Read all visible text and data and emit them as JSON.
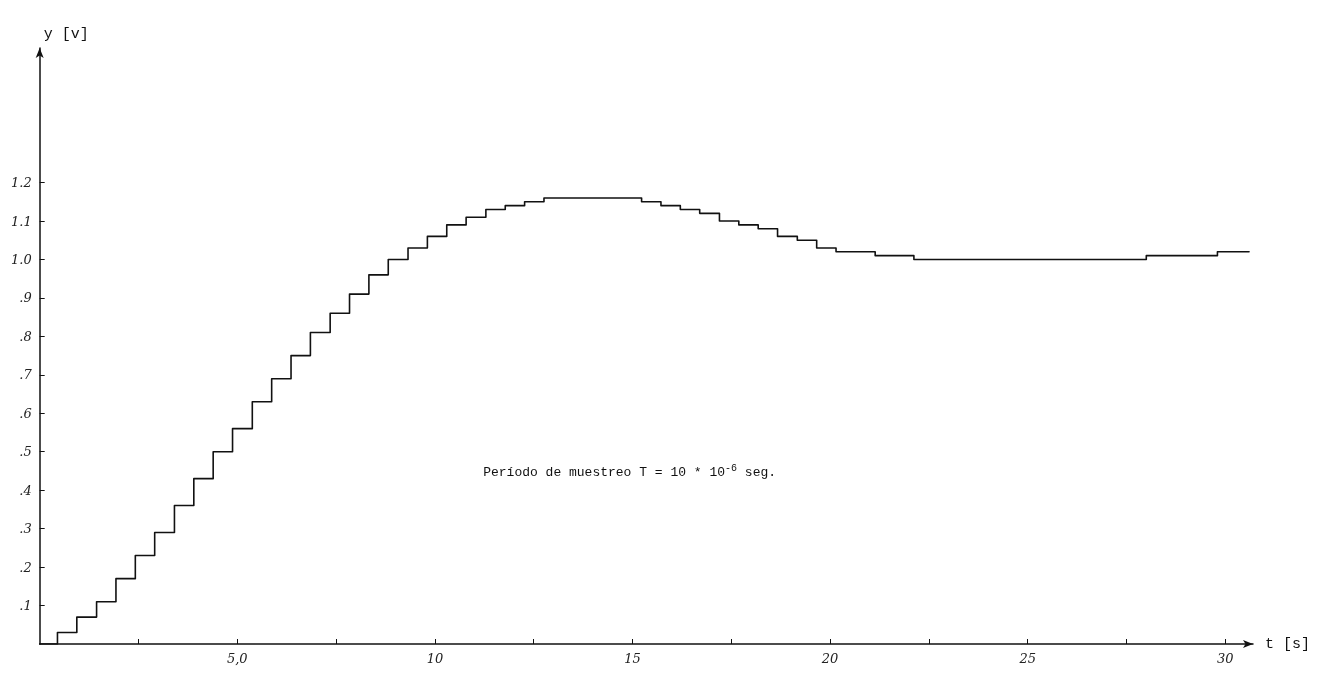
{
  "chart_data": {
    "type": "step",
    "xlabel": "t [s]",
    "ylabel": "y [v]",
    "annotations": [
      "Período de muestreo T = 10 * 10$^{-6}$ seg."
    ],
    "xlim": [
      0,
      30.7
    ],
    "ylim": [
      0,
      1.55
    ],
    "xticks": [
      {
        "value": 2.5,
        "label": null
      },
      {
        "value": 5,
        "label": "5,0"
      },
      {
        "value": 7.5,
        "label": null
      },
      10,
      {
        "value": 12.5,
        "label": null
      },
      15,
      {
        "value": 17.5,
        "label": null
      },
      20,
      {
        "value": 22.5,
        "label": null
      },
      25,
      {
        "value": 27.5,
        "label": null
      },
      30
    ],
    "yticks": [
      {
        "value": 0.1,
        "label": ".1"
      },
      {
        "value": 0.2,
        "label": ".2"
      },
      {
        "value": 0.3,
        "label": ".3"
      },
      {
        "value": 0.4,
        "label": ".4"
      },
      {
        "value": 0.5,
        "label": ".5"
      },
      {
        "value": 0.6,
        "label": ".6"
      },
      {
        "value": 0.7,
        "label": ".7"
      },
      {
        "value": 0.8,
        "label": ".8"
      },
      {
        "value": 0.9,
        "label": ".9"
      },
      {
        "value": 1.0,
        "label": "1.0"
      },
      {
        "value": 1.1,
        "label": "1.1"
      },
      {
        "value": 1.2,
        "label": "1.2"
      }
    ],
    "grid": false,
    "marker": "none",
    "line_style": "solid",
    "x": [
      0,
      0.45,
      0.94,
      1.44,
      1.93,
      2.42,
      2.91,
      3.41,
      3.9,
      4.39,
      4.88,
      5.38,
      5.87,
      6.36,
      6.85,
      7.35,
      7.84,
      8.33,
      8.82,
      9.32,
      9.81,
      10.3,
      10.79,
      11.29,
      11.78,
      12.27,
      12.76,
      13.26,
      13.75,
      14.24,
      14.73,
      15.23,
      15.72,
      16.21,
      16.7,
      17.2,
      17.69,
      18.18,
      18.67,
      19.17,
      19.66,
      20.15,
      20.64,
      21.14,
      22.12,
      24,
      27,
      28,
      29.8,
      30.6
    ],
    "series": [
      {
        "color": "#111111",
        "values": [
          0,
          0.03,
          0.07,
          0.11,
          0.17,
          0.23,
          0.29,
          0.36,
          0.43,
          0.5,
          0.56,
          0.63,
          0.69,
          0.75,
          0.81,
          0.86,
          0.91,
          0.96,
          1.0,
          1.03,
          1.06,
          1.09,
          1.11,
          1.13,
          1.14,
          1.15,
          1.16,
          1.16,
          1.16,
          1.16,
          1.16,
          1.15,
          1.14,
          1.13,
          1.12,
          1.1,
          1.09,
          1.08,
          1.06,
          1.05,
          1.03,
          1.02,
          1.02,
          1.01,
          1.0,
          1.0,
          1.0,
          1.01,
          1.02,
          1.02
        ]
      }
    ]
  }
}
